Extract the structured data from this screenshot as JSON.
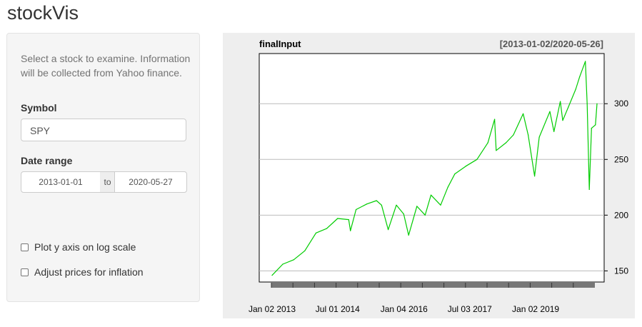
{
  "app": {
    "title": "stockVis"
  },
  "sidebar": {
    "help_text": "Select a stock to examine. Information will be collected from Yahoo finance.",
    "symbol_label": "Symbol",
    "symbol_value": "SPY",
    "date_range_label": "Date range",
    "date_start": "2013-01-01",
    "date_sep": "to",
    "date_end": "2020-05-27",
    "log_label": "Plot y axis on log scale",
    "log_checked": false,
    "adjust_label": "Adjust prices for inflation",
    "adjust_checked": false
  },
  "chart_data": {
    "type": "line",
    "title": "finalInput",
    "range_label": "[2013-01-02/2020-05-26]",
    "series": [
      {
        "color": "#00cc00",
        "x": [
          "2013-01-02",
          "2013-04-01",
          "2013-07-01",
          "2013-10-01",
          "2014-01-02",
          "2014-04-01",
          "2014-07-01",
          "2014-10-01",
          "2014-10-15",
          "2014-12-01",
          "2015-03-01",
          "2015-05-20",
          "2015-07-01",
          "2015-08-25",
          "2015-11-01",
          "2016-01-01",
          "2016-02-11",
          "2016-04-20",
          "2016-06-27",
          "2016-08-15",
          "2016-11-03",
          "2017-01-02",
          "2017-03-01",
          "2017-06-01",
          "2017-09-01",
          "2017-12-01",
          "2018-01-26",
          "2018-02-08",
          "2018-05-01",
          "2018-07-01",
          "2018-09-20",
          "2018-11-01",
          "2018-12-24",
          "2019-02-01",
          "2019-04-30",
          "2019-06-03",
          "2019-07-26",
          "2019-08-15",
          "2019-10-01",
          "2019-12-01",
          "2020-01-02",
          "2020-02-19",
          "2020-03-05",
          "2020-03-23",
          "2020-04-10",
          "2020-05-13",
          "2020-05-26"
        ],
        "y": [
          146,
          156,
          160,
          168,
          184,
          188,
          197,
          196,
          186,
          205,
          210,
          213,
          209,
          187,
          209,
          201,
          182,
          208,
          200,
          218,
          209,
          225,
          237,
          244,
          250,
          265,
          286,
          258,
          265,
          272,
          291,
          272,
          235,
          270,
          293,
          275,
          302,
          285,
          297,
          313,
          324,
          338,
          300,
          223,
          278,
          281,
          300
        ]
      }
    ],
    "x_ticks": [
      "Jan 02 2013",
      "Jul 01 2014",
      "Jan 04 2016",
      "Jul 03 2017",
      "Jan 02 2019"
    ],
    "y_ticks": [
      150,
      200,
      250,
      300
    ],
    "ylim": [
      140,
      345
    ],
    "grid": true
  }
}
